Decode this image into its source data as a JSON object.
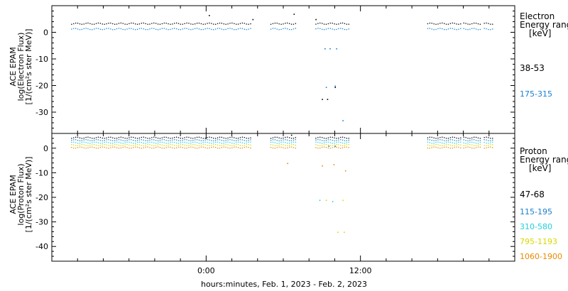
{
  "chart_data": [
    {
      "type": "scatter",
      "panel": "electron",
      "ylabel_lines": [
        "ACE EPAM",
        "log(Electron Flux)",
        "[1/(cm²s ster MeV)]"
      ],
      "ylim": [
        -38,
        10
      ],
      "yticks": [
        0,
        -10,
        -20,
        -30
      ],
      "side_title": [
        "Electron",
        "Energy range",
        "[keV]"
      ],
      "series": [
        {
          "name": "38-53",
          "color": "#000000",
          "base": 3.0,
          "x_segments": [
            [
              -10.5,
              3.5
            ],
            [
              5.0,
              7.0
            ],
            [
              8.5,
              11.2
            ],
            [
              17.2,
              19.8
            ],
            [
              20.0,
              21.3
            ],
            [
              21.6,
              22.4
            ]
          ],
          "outliers": [
            [
              0.2,
              6.5
            ],
            [
              3.6,
              5.0
            ],
            [
              6.8,
              7.0
            ],
            [
              8.5,
              5.0
            ],
            [
              9.0,
              -25.0
            ],
            [
              9.4,
              -25.0
            ],
            [
              10.0,
              -20.5
            ]
          ]
        },
        {
          "name": "175-315",
          "color": "#1a7fd0",
          "base": 1.0,
          "x_segments": [
            [
              -10.5,
              3.5
            ],
            [
              5.0,
              7.0
            ],
            [
              8.5,
              11.2
            ],
            [
              17.2,
              19.8
            ],
            [
              20.0,
              21.3
            ],
            [
              21.6,
              22.4
            ]
          ],
          "outliers": [
            [
              9.2,
              -6.0
            ],
            [
              9.6,
              -6.0
            ],
            [
              10.1,
              -6.0
            ],
            [
              9.3,
              -20.5
            ],
            [
              10.0,
              -20.0
            ],
            [
              10.6,
              -33.0
            ]
          ]
        }
      ]
    },
    {
      "type": "scatter",
      "panel": "proton",
      "ylabel_lines": [
        "ACE EPAM",
        "log(Proton Flux)",
        "[1/(cm²s ster MeV)]"
      ],
      "ylim": [
        -46,
        6
      ],
      "yticks": [
        0,
        -10,
        -20,
        -30,
        -40
      ],
      "side_title": [
        "Proton",
        "Energy range",
        "[keV]"
      ],
      "series": [
        {
          "name": "47-68",
          "color": "#000000",
          "base": 4.0,
          "x_segments": [
            [
              -10.5,
              3.5
            ],
            [
              5.0,
              7.0
            ],
            [
              8.5,
              11.2
            ],
            [
              17.2,
              19.8
            ],
            [
              20.0,
              21.3
            ],
            [
              21.6,
              22.4
            ]
          ],
          "outliers": [
            [
              6.6,
              5.5
            ]
          ]
        },
        {
          "name": "115-195",
          "color": "#1a7fd0",
          "base": 3.0,
          "x_segments": [
            [
              -10.5,
              3.5
            ],
            [
              5.0,
              7.0
            ],
            [
              8.5,
              11.2
            ],
            [
              17.2,
              19.8
            ],
            [
              20.0,
              21.3
            ],
            [
              21.6,
              22.4
            ]
          ],
          "outliers": [
            [
              9.5,
              1.0
            ],
            [
              10.0,
              1.0
            ]
          ]
        },
        {
          "name": "310-580",
          "color": "#22d0d8",
          "base": 2.0,
          "x_segments": [
            [
              -10.5,
              3.5
            ],
            [
              5.0,
              7.0
            ],
            [
              8.5,
              11.2
            ],
            [
              17.2,
              19.8
            ],
            [
              20.0,
              21.3
            ],
            [
              21.6,
              22.4
            ]
          ],
          "outliers": [
            [
              8.8,
              -21.0
            ],
            [
              9.8,
              -21.5
            ]
          ]
        },
        {
          "name": "795-1193",
          "color": "#d8d800",
          "base": 1.0,
          "x_segments": [
            [
              -10.5,
              3.5
            ],
            [
              5.0,
              7.0
            ],
            [
              8.5,
              11.2
            ],
            [
              17.2,
              19.8
            ],
            [
              20.0,
              21.3
            ],
            [
              21.6,
              22.4
            ]
          ],
          "outliers": [
            [
              9.3,
              -21.0
            ],
            [
              10.6,
              -21.0
            ],
            [
              10.2,
              -34.0
            ],
            [
              10.7,
              -34.0
            ]
          ]
        },
        {
          "name": "1060-1900",
          "color": "#e88a00",
          "base": 0.0,
          "x_segments": [
            [
              -10.5,
              3.5
            ],
            [
              5.0,
              7.0
            ],
            [
              8.5,
              11.2
            ],
            [
              17.2,
              19.8
            ],
            [
              20.0,
              21.3
            ],
            [
              21.6,
              22.4
            ]
          ],
          "outliers": [
            [
              6.3,
              -6.0
            ],
            [
              9.0,
              -7.0
            ],
            [
              9.9,
              -6.5
            ],
            [
              10.8,
              -9.0
            ]
          ]
        }
      ]
    }
  ],
  "x_axis": {
    "xlim": [
      -12,
      24
    ],
    "major_ticks": [
      {
        "value": 0,
        "label": "0:00"
      },
      {
        "value": 12,
        "label": "12:00"
      }
    ],
    "minor_step": 2,
    "title": "hours:minutes, Feb.  1, 2023 - Feb.  2, 2023"
  }
}
